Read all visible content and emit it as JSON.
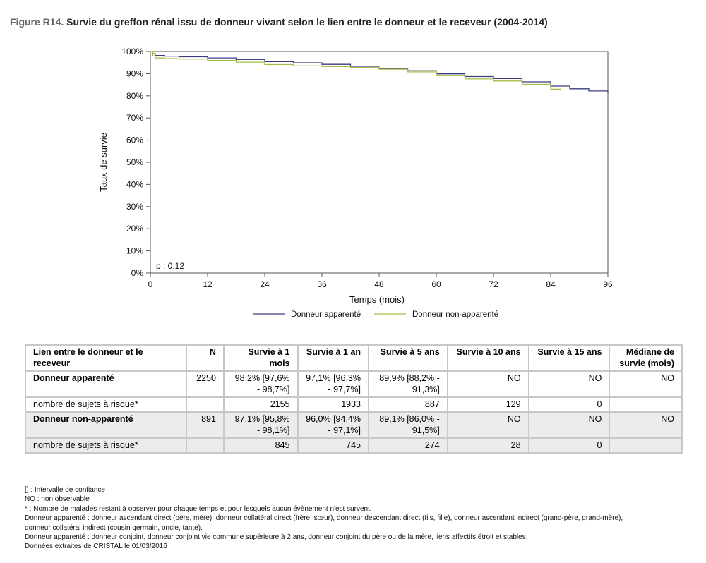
{
  "figure": {
    "number": "Figure R14.",
    "title": "Survie du greffon rénal issu de donneur vivant selon le lien entre le donneur et le receveur (2004-2014)"
  },
  "chart_data": {
    "type": "line",
    "xlabel": "Temps (mois)",
    "ylabel": "Taux de survie",
    "xlim": [
      0,
      96
    ],
    "ylim": [
      0,
      100
    ],
    "x_ticks": [
      "0",
      "12",
      "24",
      "36",
      "48",
      "60",
      "72",
      "84",
      "96"
    ],
    "y_ticks": [
      "0%",
      "10%",
      "20%",
      "30%",
      "40%",
      "50%",
      "60%",
      "70%",
      "80%",
      "90%",
      "100%"
    ],
    "annotation": "p : 0,12",
    "grid": false,
    "legend_position": "bottom",
    "series": [
      {
        "name": "Donneur apparenté",
        "color": "#3b3f7c",
        "x": [
          0,
          0.5,
          1,
          3,
          6,
          12,
          18,
          24,
          30,
          36,
          42,
          48,
          54,
          60,
          66,
          72,
          78,
          84,
          88,
          92,
          96
        ],
        "y": [
          100,
          99.0,
          98.2,
          97.9,
          97.6,
          97.1,
          96.4,
          95.4,
          94.9,
          94.2,
          93.0,
          92.4,
          91.3,
          89.9,
          88.7,
          87.8,
          86.3,
          84.4,
          83.2,
          82.2,
          81.2
        ]
      },
      {
        "name": "Donneur non-apparenté",
        "color": "#a6bd44",
        "x": [
          0,
          0.5,
          1,
          3,
          6,
          12,
          18,
          24,
          30,
          36,
          42,
          48,
          54,
          60,
          66,
          72,
          78,
          84,
          86
        ],
        "y": [
          100,
          98.0,
          97.1,
          96.8,
          96.6,
          96.0,
          95.2,
          94.1,
          93.5,
          93.2,
          92.8,
          92.0,
          90.8,
          89.1,
          87.6,
          86.7,
          85.2,
          83.0,
          82.4
        ]
      }
    ]
  },
  "table": {
    "headers": [
      "Lien entre le donneur et le receveur",
      "N",
      "Survie à 1 mois",
      "Survie à 1 an",
      "Survie à 5 ans",
      "Survie à 10 ans",
      "Survie à 15 ans",
      "Médiane de survie (mois)"
    ],
    "rows": [
      {
        "label": "Donneur apparenté",
        "n": "2250",
        "s1m": "98,2% [97,6% - 98,7%]",
        "s1a": "97,1% [96,3% - 97,7%]",
        "s5a": "89,9% [88,2% - 91,3%]",
        "s10a": "NO",
        "s15a": "NO",
        "med": "NO"
      },
      {
        "label": "nombre de sujets à risque*",
        "n": "",
        "s1m": "2155",
        "s1a": "1933",
        "s5a": "887",
        "s10a": "129",
        "s15a": "0",
        "med": ""
      },
      {
        "label": "Donneur non-apparenté",
        "n": "891",
        "s1m": "97,1% [95,8% - 98,1%]",
        "s1a": "96,0% [94,4% - 97,1%]",
        "s5a": "89,1% [86,0% - 91,5%]",
        "s10a": "NO",
        "s15a": "NO",
        "med": "NO"
      },
      {
        "label": "nombre de sujets à risque*",
        "n": "",
        "s1m": "845",
        "s1a": "745",
        "s5a": "274",
        "s10a": "28",
        "s15a": "0",
        "med": ""
      }
    ]
  },
  "footnotes": [
    "[] : Intervalle de confiance",
    "NO : non observable",
    "* : Nombre de malades restant à observer pour chaque temps et pour lesquels aucun évènement n'est survenu",
    "Donneur apparenté : donneur ascendant direct (père, mère), donneur collatéral direct (frère, sœur), donneur descendant direct (fils, fille), donneur ascendant indirect (grand-père, grand-mère),",
    "donneur collatéral indirect (cousin germain, oncle, tante).",
    "Donneur apparenté : donneur conjoint, donneur conjoint vie commune supérieure à 2 ans, donneur conjoint du père ou de la mère, liens affectifs étroit et stables.",
    "Données extraites de CRISTAL le 01/03/2016"
  ]
}
